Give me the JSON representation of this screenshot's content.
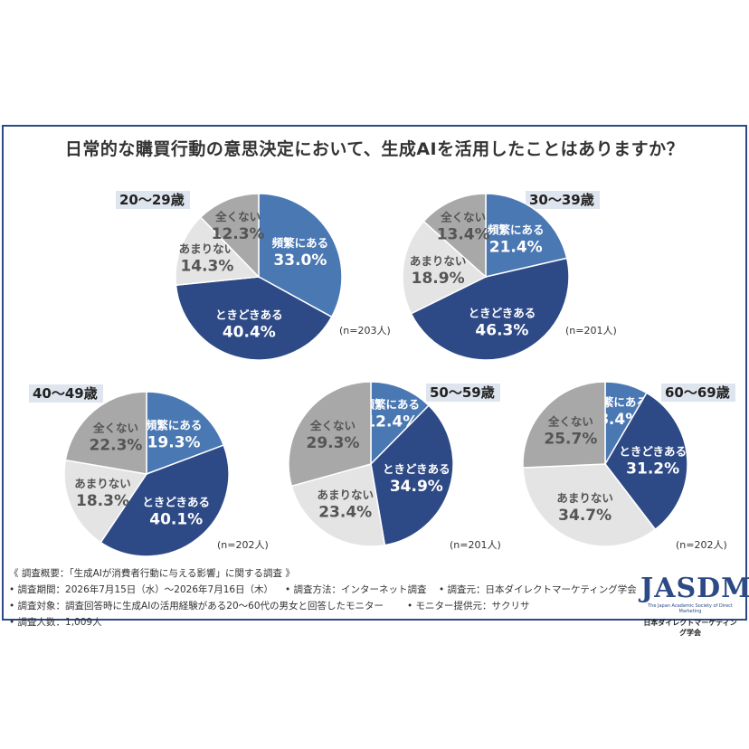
{
  "title": "日常的な購買行動の意思決定において、生成AIを活用したことはありますか？",
  "colors": {
    "頻繁にある": "#4a78b3",
    "ときどきある": "#2e4a86",
    "あまりない": "#e4e4e4",
    "全くない": "#a8a8a8",
    "frame": "#2c4a86"
  },
  "chart_data": [
    {
      "type": "pie",
      "group": "20〜29歳",
      "n": "(n=203人)",
      "categories": [
        "頻繁にある",
        "ときどきある",
        "あまりない",
        "全くない"
      ],
      "values": [
        33.0,
        40.4,
        14.3,
        12.3
      ],
      "labels": [
        "33.0%",
        "40.4%",
        "14.3%",
        "12.3%"
      ]
    },
    {
      "type": "pie",
      "group": "30〜39歳",
      "n": "(n=201人)",
      "categories": [
        "頻繁にある",
        "ときどきある",
        "あまりない",
        "全くない"
      ],
      "values": [
        21.4,
        46.3,
        18.9,
        13.4
      ],
      "labels": [
        "21.4%",
        "46.3%",
        "18.9%",
        "13.4%"
      ]
    },
    {
      "type": "pie",
      "group": "40〜49歳",
      "n": "(n=202人)",
      "categories": [
        "頻繁にある",
        "ときどきある",
        "あまりない",
        "全くない"
      ],
      "values": [
        19.3,
        40.1,
        18.3,
        22.3
      ],
      "labels": [
        "19.3%",
        "40.1%",
        "18.3%",
        "22.3%"
      ]
    },
    {
      "type": "pie",
      "group": "50〜59歳",
      "n": "(n=201人)",
      "categories": [
        "頻繁にある",
        "ときどきある",
        "あまりない",
        "全くない"
      ],
      "values": [
        12.4,
        34.9,
        23.4,
        29.3
      ],
      "labels": [
        "12.4%",
        "34.9%",
        "23.4%",
        "29.3%"
      ]
    },
    {
      "type": "pie",
      "group": "60〜69歳",
      "n": "(n=202人)",
      "categories": [
        "頻繁にある",
        "ときどきある",
        "あまりない",
        "全くない"
      ],
      "values": [
        8.4,
        31.2,
        34.7,
        25.7
      ],
      "labels": [
        "8.4%",
        "31.2%",
        "34.7%",
        "25.7%"
      ]
    }
  ],
  "notes": {
    "overview": "《 調査概要：「生成AIが消費者行動に与える影響」に関する調査 》",
    "period": "• 調査期間：2026年7月15日（水）〜2026年7月16日（木）",
    "method": "• 調査方法：インターネット調査",
    "source": "• 調査元：日本ダイレクトマーケティング学会",
    "target": "• 調査対象：調査回答時に生成AIの活用経験がある20〜60代の男女と回答したモニター",
    "provider": "• モニター提供元：サクリサ",
    "count": "• 調査人数：1,009人"
  },
  "logo": {
    "mark": "JASDM",
    "english": "The Japan Academic Society of Direct Marketing",
    "japanese": "日本ダイレクトマーケティング学会"
  }
}
